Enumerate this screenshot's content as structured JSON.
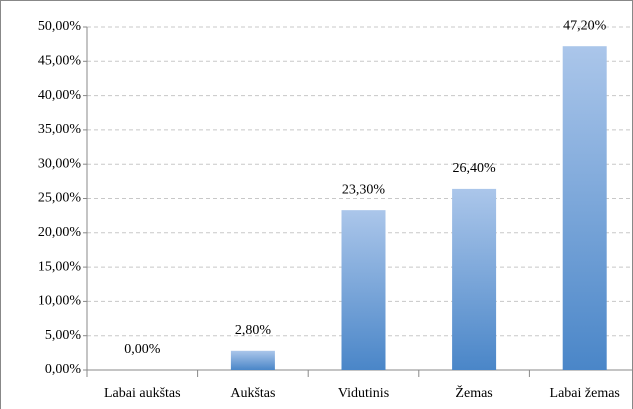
{
  "chart_data": {
    "type": "bar",
    "categories": [
      "Labai aukštas",
      "Aukštas",
      "Vidutinis",
      "Žemas",
      "Labai žemas"
    ],
    "values": [
      0,
      2.8,
      23.3,
      26.4,
      47.2
    ],
    "value_labels": [
      "0,00%",
      "2,80%",
      "23,30%",
      "26,40%",
      "47,20%"
    ],
    "color": "#4a86c8",
    "ylim": [
      0,
      50
    ],
    "yticks": [
      {
        "value": 0,
        "label": "0,00%"
      },
      {
        "value": 5,
        "label": "5,00%"
      },
      {
        "value": 10,
        "label": "10,00%"
      },
      {
        "value": 15,
        "label": "15,00%"
      },
      {
        "value": 20,
        "label": "20,00%"
      },
      {
        "value": 25,
        "label": "25,00%"
      },
      {
        "value": 30,
        "label": "30,00%"
      },
      {
        "value": 35,
        "label": "35,00%"
      },
      {
        "value": 40,
        "label": "40,00%"
      },
      {
        "value": 45,
        "label": "45,00%"
      },
      {
        "value": 50,
        "label": "50,00%"
      }
    ],
    "grid": true
  }
}
